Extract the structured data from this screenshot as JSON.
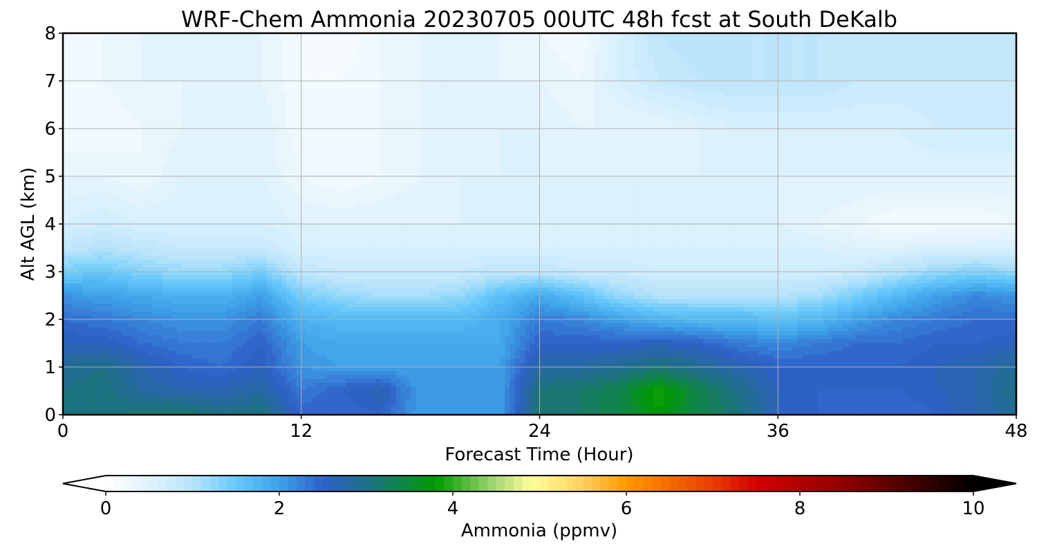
{
  "chart_data": {
    "type": "heatmap",
    "title": "WRF-Chem Ammonia  20230705 00UTC 48h fcst at South DeKalb",
    "xlabel": "Forecast Time (Hour)",
    "ylabel": "Alt AGL (km)",
    "xlim": [
      0,
      48
    ],
    "ylim": [
      0,
      8
    ],
    "xticks": [
      0,
      12,
      24,
      36,
      48
    ],
    "yticks": [
      0,
      1,
      2,
      3,
      4,
      5,
      6,
      7,
      8
    ],
    "grid": true,
    "x": [
      0,
      2,
      4,
      6,
      8,
      10,
      12,
      14,
      16,
      18,
      20,
      22,
      24,
      26,
      28,
      30,
      32,
      34,
      36,
      38,
      40,
      42,
      44,
      46,
      48
    ],
    "y": [
      0,
      0.5,
      1,
      1.5,
      2,
      2.5,
      3,
      3.5,
      4,
      5,
      6,
      7,
      8
    ],
    "z": [
      [
        3.0,
        3.0,
        3.2,
        3.2,
        3.0,
        3.1,
        2.5,
        2.4,
        2.5,
        2.0,
        2.0,
        2.0,
        3.2,
        3.2,
        3.4,
        3.8,
        3.4,
        3.1,
        2.6,
        2.5,
        2.4,
        2.4,
        2.5,
        2.7,
        2.9
      ],
      [
        3.0,
        3.1,
        2.8,
        2.7,
        2.7,
        2.8,
        2.3,
        2.5,
        2.7,
        2.0,
        2.0,
        2.0,
        3.1,
        3.2,
        3.4,
        3.9,
        3.4,
        3.0,
        2.6,
        2.5,
        2.5,
        2.5,
        2.6,
        2.7,
        3.0
      ],
      [
        2.9,
        3.0,
        2.7,
        2.5,
        2.4,
        2.6,
        2.1,
        2.0,
        2.0,
        2.0,
        2.0,
        2.0,
        2.8,
        2.8,
        2.9,
        3.1,
        2.9,
        2.7,
        2.5,
        2.5,
        2.5,
        2.5,
        2.6,
        2.7,
        2.9
      ],
      [
        2.6,
        2.6,
        2.4,
        2.3,
        2.3,
        2.5,
        2.0,
        1.9,
        1.9,
        1.9,
        1.9,
        1.9,
        2.5,
        2.5,
        2.5,
        2.6,
        2.5,
        2.3,
        2.2,
        2.3,
        2.4,
        2.4,
        2.5,
        2.5,
        2.6
      ],
      [
        2.4,
        2.3,
        2.2,
        2.1,
        2.1,
        2.3,
        1.8,
        1.7,
        1.7,
        1.7,
        1.7,
        1.9,
        2.3,
        2.2,
        2.0,
        1.8,
        1.7,
        1.7,
        1.6,
        1.7,
        2.0,
        2.2,
        2.3,
        2.4,
        2.4
      ],
      [
        2.1,
        2.0,
        1.9,
        1.8,
        1.8,
        2.0,
        1.4,
        1.2,
        1.1,
        1.1,
        1.2,
        1.6,
        1.9,
        1.6,
        1.2,
        1.0,
        1.0,
        1.0,
        1.0,
        1.1,
        1.4,
        1.7,
        2.0,
        2.2,
        2.1
      ],
      [
        1.4,
        1.5,
        1.3,
        1.2,
        1.2,
        1.4,
        0.9,
        0.8,
        0.8,
        0.8,
        0.8,
        0.9,
        0.9,
        0.8,
        0.8,
        0.7,
        0.7,
        0.7,
        0.7,
        0.7,
        0.8,
        1.0,
        1.2,
        1.3,
        1.2
      ],
      [
        0.9,
        1.0,
        0.9,
        0.8,
        0.8,
        0.8,
        0.6,
        0.6,
        0.6,
        0.6,
        0.6,
        0.6,
        0.6,
        0.6,
        0.6,
        0.6,
        0.6,
        0.6,
        0.6,
        0.6,
        0.5,
        0.5,
        0.6,
        0.6,
        0.6
      ],
      [
        0.6,
        0.7,
        0.6,
        0.6,
        0.6,
        0.6,
        0.5,
        0.5,
        0.5,
        0.5,
        0.5,
        0.5,
        0.6,
        0.6,
        0.5,
        0.5,
        0.5,
        0.5,
        0.5,
        0.4,
        0.3,
        0.2,
        0.2,
        0.2,
        0.3
      ],
      [
        0.4,
        0.4,
        0.3,
        0.5,
        0.5,
        0.5,
        0.3,
        0.2,
        0.3,
        0.4,
        0.5,
        0.5,
        0.5,
        0.5,
        0.5,
        0.5,
        0.5,
        0.5,
        0.5,
        0.5,
        0.5,
        0.5,
        0.5,
        0.5,
        0.5
      ],
      [
        0.2,
        0.2,
        0.3,
        0.4,
        0.4,
        0.5,
        0.2,
        0.2,
        0.3,
        0.4,
        0.4,
        0.5,
        0.5,
        0.4,
        0.4,
        0.4,
        0.5,
        0.6,
        0.6,
        0.6,
        0.6,
        0.6,
        0.7,
        0.7,
        0.7
      ],
      [
        0.3,
        0.3,
        0.4,
        0.4,
        0.4,
        0.4,
        0.2,
        0.2,
        0.3,
        0.4,
        0.4,
        0.4,
        0.4,
        0.3,
        0.6,
        0.8,
        0.9,
        0.9,
        0.9,
        0.9,
        0.8,
        0.8,
        0.8,
        0.8,
        0.8
      ],
      [
        0.3,
        0.3,
        0.4,
        0.4,
        0.4,
        0.4,
        0.2,
        0.1,
        0.3,
        0.4,
        0.4,
        0.4,
        0.3,
        0.2,
        0.6,
        0.9,
        1.0,
        0.9,
        0.9,
        0.9,
        0.8,
        0.8,
        0.8,
        0.8,
        0.8
      ]
    ],
    "colorbar": {
      "label": "Ammonia  (ppmv)",
      "min": 0,
      "max": 10,
      "ticks": [
        0,
        2,
        4,
        6,
        8,
        10
      ],
      "extend": "both",
      "levels": 100,
      "stops": [
        [
          0,
          "#ffffff"
        ],
        [
          0.5,
          "#dff2fc"
        ],
        [
          1.0,
          "#b8e4fb"
        ],
        [
          1.5,
          "#66c8fa"
        ],
        [
          2.0,
          "#3ea2e8"
        ],
        [
          2.5,
          "#3060c8"
        ],
        [
          3.0,
          "#1f6f88"
        ],
        [
          3.5,
          "#0d8a3a"
        ],
        [
          3.8,
          "#009a00"
        ],
        [
          4.5,
          "#a8d878"
        ],
        [
          4.9,
          "#ffff99"
        ],
        [
          5.5,
          "#ffd060"
        ],
        [
          6.0,
          "#ff9a00"
        ],
        [
          7.0,
          "#e83c00"
        ],
        [
          7.5,
          "#d40000"
        ],
        [
          8.5,
          "#900000"
        ],
        [
          9.5,
          "#300000"
        ],
        [
          10,
          "#000000"
        ]
      ]
    }
  }
}
